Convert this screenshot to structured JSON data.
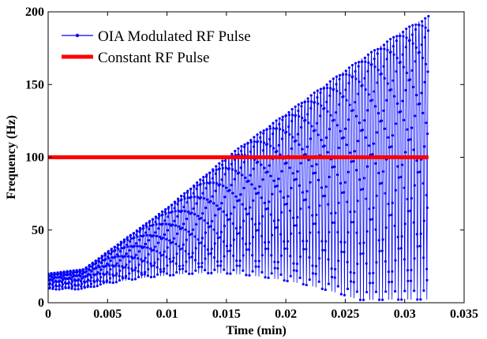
{
  "chart_data": {
    "type": "line",
    "title": "",
    "xlabel": "Time (min)",
    "ylabel": "Frequency (Hz)",
    "xlim": [
      0,
      0.035
    ],
    "ylim": [
      0,
      200
    ],
    "xticks": [
      0,
      0.005,
      0.01,
      0.015,
      0.02,
      0.025,
      0.03,
      0.035
    ],
    "xtick_labels": [
      "0",
      "0.005",
      "0.01",
      "0.015",
      "0.02",
      "0.025",
      "0.03",
      "0.035"
    ],
    "yticks": [
      0,
      50,
      100,
      150,
      200
    ],
    "ytick_labels": [
      "0",
      "50",
      "100",
      "150",
      "200"
    ],
    "legend_position": "top-left",
    "series": [
      {
        "name": "OIA Modulated RF Pulse",
        "color": "#0000ff",
        "style": "line-with-dot-markers",
        "x_range": [
          0,
          0.032
        ],
        "description_envelope_upper": [
          [
            0,
            20
          ],
          [
            0.003,
            23
          ],
          [
            0.005,
            35
          ],
          [
            0.01,
            65
          ],
          [
            0.015,
            100
          ],
          [
            0.02,
            130
          ],
          [
            0.025,
            160
          ],
          [
            0.03,
            188
          ],
          [
            0.032,
            197
          ]
        ],
        "description_envelope_lower": [
          [
            0,
            0
          ],
          [
            0.032,
            0
          ]
        ]
      },
      {
        "name": "Constant RF Pulse",
        "color": "#ff0000",
        "style": "thick-line",
        "x": [
          0,
          0.032
        ],
        "y": [
          100,
          100
        ]
      }
    ]
  }
}
